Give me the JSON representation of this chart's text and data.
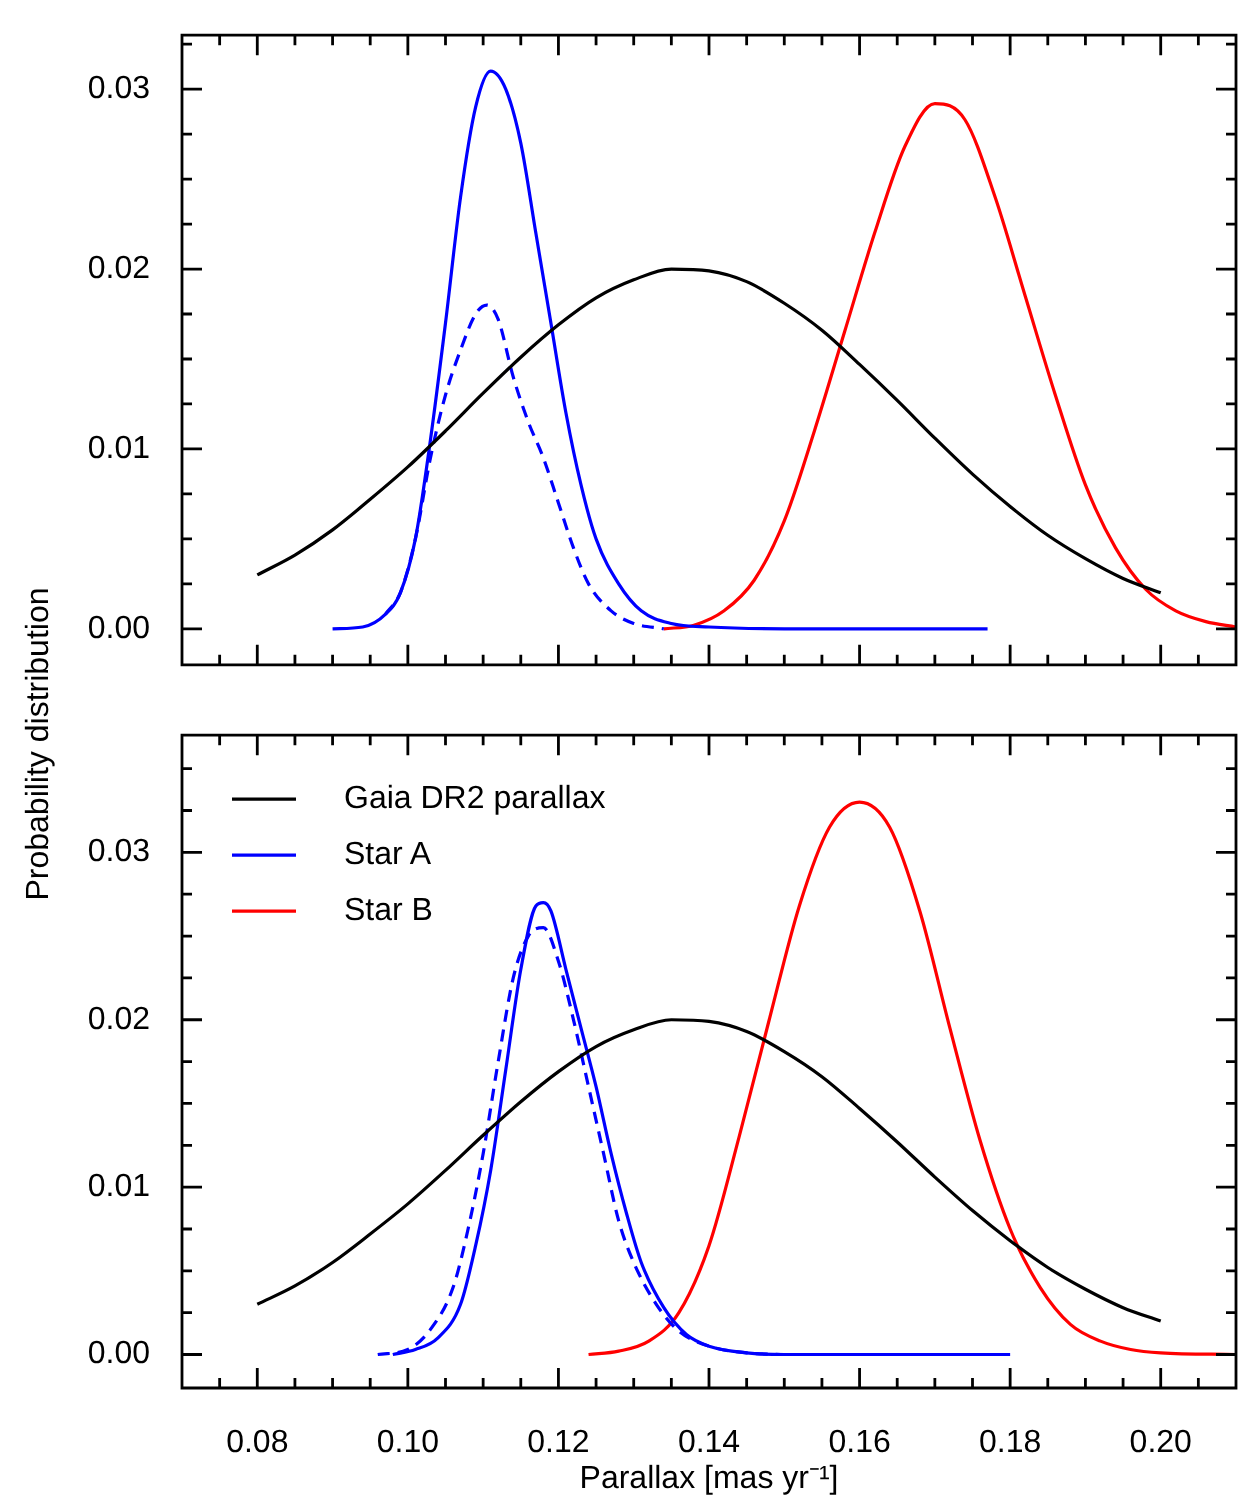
{
  "chart_data": [
    {
      "type": "line",
      "ylabel": "Probability distribution",
      "tick_labels": "y",
      "legend": false,
      "marker": "none",
      "grid": false,
      "xlim": [
        0.07,
        0.21
      ],
      "ylim": [
        -0.002,
        0.033
      ],
      "xticks": [
        {
          "value": 0.075,
          "label": null
        },
        {
          "value": 0.08,
          "label": null
        },
        {
          "value": 0.085,
          "label": null
        },
        {
          "value": 0.09,
          "label": null
        },
        {
          "value": 0.095,
          "label": null
        },
        {
          "value": 0.1,
          "label": null
        },
        {
          "value": 0.105,
          "label": null
        },
        {
          "value": 0.11,
          "label": null
        },
        {
          "value": 0.115,
          "label": null
        },
        {
          "value": 0.12,
          "label": null
        },
        {
          "value": 0.125,
          "label": null
        },
        {
          "value": 0.13,
          "label": null
        },
        {
          "value": 0.135,
          "label": null
        },
        {
          "value": 0.14,
          "label": null
        },
        {
          "value": 0.145,
          "label": null
        },
        {
          "value": 0.15,
          "label": null
        },
        {
          "value": 0.155,
          "label": null
        },
        {
          "value": 0.16,
          "label": null
        },
        {
          "value": 0.165,
          "label": null
        },
        {
          "value": 0.17,
          "label": null
        },
        {
          "value": 0.175,
          "label": null
        },
        {
          "value": 0.18,
          "label": null
        },
        {
          "value": 0.185,
          "label": null
        },
        {
          "value": 0.19,
          "label": null
        },
        {
          "value": 0.195,
          "label": null
        },
        {
          "value": 0.2,
          "label": null
        },
        {
          "value": 0.205,
          "label": null
        }
      ],
      "yticks": [
        {
          "value": 0,
          "label": "0.00"
        },
        {
          "value": 0.0025,
          "label": null
        },
        {
          "value": 0.005,
          "label": null
        },
        {
          "value": 0.0075,
          "label": null
        },
        {
          "value": 0.01,
          "label": "0.01"
        },
        {
          "value": 0.0125,
          "label": null
        },
        {
          "value": 0.015,
          "label": null
        },
        {
          "value": 0.0175,
          "label": null
        },
        {
          "value": 0.02,
          "label": "0.02"
        },
        {
          "value": 0.0225,
          "label": null
        },
        {
          "value": 0.025,
          "label": null
        },
        {
          "value": 0.0275,
          "label": null
        },
        {
          "value": 0.03,
          "label": "0.03"
        },
        {
          "value": 0.0325,
          "label": null
        }
      ],
      "series": [
        {
          "color": "#000000",
          "line_style": "solid",
          "x": [
            0.08,
            0.085,
            0.09,
            0.095,
            0.1,
            0.105,
            0.11,
            0.115,
            0.12,
            0.125,
            0.13,
            0.135,
            0.14,
            0.145,
            0.15,
            0.155,
            0.16,
            0.165,
            0.17,
            0.175,
            0.18,
            0.185,
            0.19,
            0.195,
            0.2
          ],
          "values": [
            0.003,
            0.0041,
            0.0055,
            0.0072,
            0.009,
            0.011,
            0.0131,
            0.0151,
            0.0169,
            0.0184,
            0.0194,
            0.02,
            0.0199,
            0.0193,
            0.0181,
            0.0166,
            0.0147,
            0.0127,
            0.0106,
            0.0086,
            0.0068,
            0.0052,
            0.0039,
            0.0028,
            0.002
          ]
        },
        {
          "color": "#0000ff",
          "line_style": "solid",
          "x": [
            0.09,
            0.094,
            0.097,
            0.099,
            0.101,
            0.103,
            0.105,
            0.107,
            0.109,
            0.111,
            0.113,
            0.115,
            0.117,
            0.119,
            0.121,
            0.123,
            0.125,
            0.128,
            0.131,
            0.135,
            0.14,
            0.15,
            0.177
          ],
          "values": [
            0,
            0.0001,
            0.0008,
            0.002,
            0.005,
            0.0105,
            0.017,
            0.024,
            0.029,
            0.031,
            0.03,
            0.027,
            0.022,
            0.017,
            0.012,
            0.008,
            0.005,
            0.0025,
            0.001,
            0.0003,
            0.0001,
            0,
            0
          ]
        },
        {
          "color": "#0000ff",
          "line_style": "dashed",
          "x": [
            0.097,
            0.099,
            0.101,
            0.103,
            0.105,
            0.107,
            0.109,
            0.1105,
            0.112,
            0.114,
            0.116,
            0.118,
            0.12,
            0.122,
            0.124,
            0.127,
            0.13,
            0.134
          ],
          "values": [
            0.0008,
            0.002,
            0.005,
            0.0095,
            0.013,
            0.0155,
            0.0175,
            0.018,
            0.0172,
            0.014,
            0.0115,
            0.0095,
            0.007,
            0.0045,
            0.0025,
            0.001,
            0.0003,
            0
          ]
        },
        {
          "color": "#ff0000",
          "line_style": "solid",
          "x": [
            0.134,
            0.138,
            0.142,
            0.146,
            0.15,
            0.154,
            0.158,
            0.162,
            0.166,
            0.17,
            0.174,
            0.178,
            0.182,
            0.186,
            0.19,
            0.194,
            0.198,
            0.202,
            0.206,
            0.21
          ],
          "values": [
            0,
            0.0002,
            0.001,
            0.0027,
            0.006,
            0.011,
            0.0165,
            0.022,
            0.0268,
            0.0292,
            0.0283,
            0.024,
            0.0185,
            0.013,
            0.008,
            0.0045,
            0.0022,
            0.001,
            0.0004,
            0.0001
          ]
        }
      ]
    },
    {
      "type": "line",
      "xlabel": "Parallax [mas yr⁻¹]",
      "legend": "top left",
      "marker": "none",
      "grid": false,
      "xlim": [
        0.07,
        0.21
      ],
      "ylim": [
        -0.002,
        0.037
      ],
      "xticks": [
        {
          "value": 0.075,
          "label": null
        },
        {
          "value": 0.08,
          "label": "0.08"
        },
        {
          "value": 0.085,
          "label": null
        },
        {
          "value": 0.09,
          "label": null
        },
        {
          "value": 0.095,
          "label": null
        },
        {
          "value": 0.1,
          "label": "0.10"
        },
        {
          "value": 0.105,
          "label": null
        },
        {
          "value": 0.11,
          "label": null
        },
        {
          "value": 0.115,
          "label": null
        },
        {
          "value": 0.12,
          "label": "0.12"
        },
        {
          "value": 0.125,
          "label": null
        },
        {
          "value": 0.13,
          "label": null
        },
        {
          "value": 0.135,
          "label": null
        },
        {
          "value": 0.14,
          "label": "0.14"
        },
        {
          "value": 0.145,
          "label": null
        },
        {
          "value": 0.15,
          "label": null
        },
        {
          "value": 0.155,
          "label": null
        },
        {
          "value": 0.16,
          "label": "0.16"
        },
        {
          "value": 0.165,
          "label": null
        },
        {
          "value": 0.17,
          "label": null
        },
        {
          "value": 0.175,
          "label": null
        },
        {
          "value": 0.18,
          "label": "0.18"
        },
        {
          "value": 0.185,
          "label": null
        },
        {
          "value": 0.19,
          "label": null
        },
        {
          "value": 0.195,
          "label": null
        },
        {
          "value": 0.2,
          "label": "0.20"
        },
        {
          "value": 0.205,
          "label": null
        }
      ],
      "yticks": [
        {
          "value": 0,
          "label": "0.00"
        },
        {
          "value": 0.0025,
          "label": null
        },
        {
          "value": 0.005,
          "label": null
        },
        {
          "value": 0.0075,
          "label": null
        },
        {
          "value": 0.01,
          "label": "0.01"
        },
        {
          "value": 0.0125,
          "label": null
        },
        {
          "value": 0.015,
          "label": null
        },
        {
          "value": 0.0175,
          "label": null
        },
        {
          "value": 0.02,
          "label": "0.02"
        },
        {
          "value": 0.0225,
          "label": null
        },
        {
          "value": 0.025,
          "label": null
        },
        {
          "value": 0.0275,
          "label": null
        },
        {
          "value": 0.03,
          "label": "0.03"
        },
        {
          "value": 0.0325,
          "label": null
        },
        {
          "value": 0.035,
          "label": null
        }
      ],
      "series": [
        {
          "name": "Gaia DR2 parallax",
          "color": "#000000",
          "line_style": "solid",
          "x": [
            0.08,
            0.085,
            0.09,
            0.095,
            0.1,
            0.105,
            0.11,
            0.115,
            0.12,
            0.125,
            0.13,
            0.135,
            0.14,
            0.145,
            0.15,
            0.155,
            0.16,
            0.165,
            0.17,
            0.175,
            0.18,
            0.185,
            0.19,
            0.195,
            0.2
          ],
          "values": [
            0.003,
            0.0041,
            0.0055,
            0.0072,
            0.009,
            0.011,
            0.0131,
            0.0151,
            0.0169,
            0.0184,
            0.0194,
            0.02,
            0.0199,
            0.0193,
            0.0181,
            0.0166,
            0.0147,
            0.0127,
            0.0106,
            0.0086,
            0.0068,
            0.0052,
            0.0039,
            0.0028,
            0.002
          ]
        },
        {
          "name": "Star A",
          "color": "#0000ff",
          "line_style": "solid",
          "x": [
            0.098,
            0.101,
            0.104,
            0.107,
            0.109,
            0.111,
            0.113,
            0.115,
            0.117,
            0.118,
            0.119,
            0.121,
            0.123,
            0.125,
            0.127,
            0.129,
            0.131,
            0.134,
            0.137,
            0.14,
            0.145,
            0.15,
            0.18
          ],
          "values": [
            0,
            0.0003,
            0.001,
            0.003,
            0.0065,
            0.011,
            0.017,
            0.023,
            0.0268,
            0.027,
            0.0265,
            0.023,
            0.0195,
            0.016,
            0.012,
            0.0085,
            0.0055,
            0.0028,
            0.0012,
            0.0005,
            0.0001,
            0,
            0
          ]
        },
        {
          "color": "#0000ff",
          "line_style": "dashed",
          "x": [
            0.096,
            0.1,
            0.103,
            0.106,
            0.108,
            0.11,
            0.112,
            0.114,
            0.116,
            0.118,
            0.12,
            0.122,
            0.124,
            0.126,
            0.128,
            0.13,
            0.133,
            0.136,
            0.14,
            0.145,
            0.15
          ],
          "values": [
            0,
            0.0003,
            0.0015,
            0.004,
            0.0075,
            0.012,
            0.0175,
            0.0225,
            0.025,
            0.0255,
            0.0235,
            0.02,
            0.016,
            0.012,
            0.008,
            0.0055,
            0.003,
            0.0014,
            0.0005,
            0.0001,
            0
          ]
        },
        {
          "name": "Star B",
          "color": "#ff0000",
          "line_style": "solid",
          "x": [
            0.124,
            0.128,
            0.132,
            0.136,
            0.14,
            0.144,
            0.148,
            0.152,
            0.156,
            0.16,
            0.164,
            0.168,
            0.172,
            0.176,
            0.18,
            0.184,
            0.188,
            0.192,
            0.196,
            0.2,
            0.21
          ],
          "values": [
            0,
            0.0002,
            0.0008,
            0.0025,
            0.0065,
            0.013,
            0.02,
            0.0268,
            0.0315,
            0.033,
            0.0315,
            0.0265,
            0.0195,
            0.0128,
            0.0075,
            0.004,
            0.0018,
            0.0008,
            0.0003,
            0.0001,
            0
          ]
        }
      ]
    }
  ]
}
